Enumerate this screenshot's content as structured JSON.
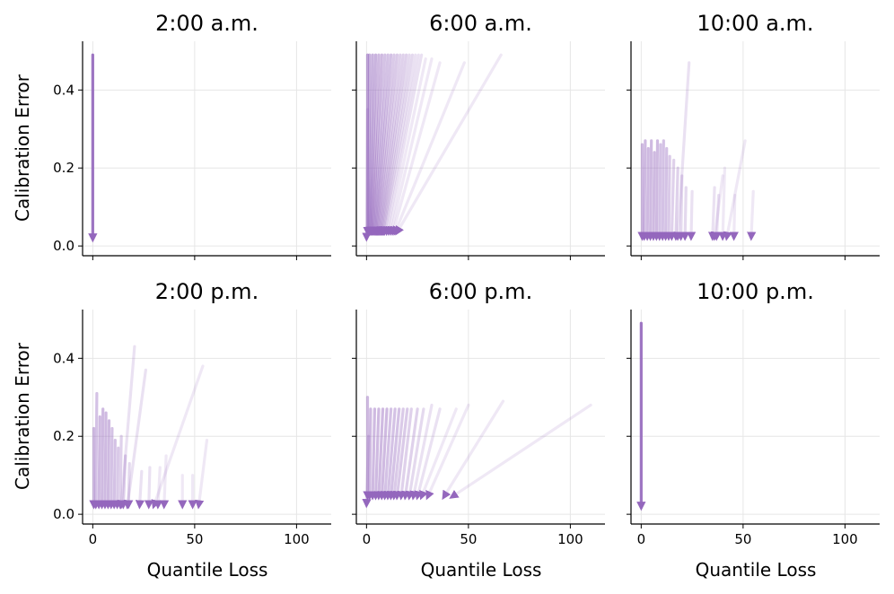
{
  "chart_data": {
    "type": "small-multiples-arrow-plot",
    "xlabel": "Quantile Loss",
    "ylabel": "Calibration Error",
    "xlim": [
      -5,
      117
    ],
    "ylim": [
      -0.025,
      0.525
    ],
    "xticks": [
      0,
      50,
      100
    ],
    "yticks": [
      0.0,
      0.2,
      0.4
    ],
    "ytick_labels": [
      "0.0",
      "0.2",
      "0.4"
    ],
    "xtick_labels": [
      "0",
      "50",
      "100"
    ],
    "color": "#9467bd",
    "panels": [
      {
        "title": "2:00 a.m.",
        "arrows": [
          {
            "x0": 0.0,
            "y0": 0.49,
            "x1": 0.0,
            "y1": 0.018,
            "alpha": 0.9
          }
        ]
      },
      {
        "title": "6:00 a.m.",
        "arrows": [
          {
            "x0": 0.5,
            "y0": 0.49,
            "x1": 0.5,
            "y1": 0.035,
            "alpha": 0.6
          },
          {
            "x0": 1.5,
            "y0": 0.49,
            "x1": 1.0,
            "y1": 0.035,
            "alpha": 0.5
          },
          {
            "x0": 3.0,
            "y0": 0.49,
            "x1": 1.5,
            "y1": 0.035,
            "alpha": 0.5
          },
          {
            "x0": 4.5,
            "y0": 0.49,
            "x1": 2.0,
            "y1": 0.035,
            "alpha": 0.5
          },
          {
            "x0": 6.0,
            "y0": 0.49,
            "x1": 2.5,
            "y1": 0.035,
            "alpha": 0.45
          },
          {
            "x0": 7.5,
            "y0": 0.49,
            "x1": 3.0,
            "y1": 0.035,
            "alpha": 0.45
          },
          {
            "x0": 9.0,
            "y0": 0.49,
            "x1": 3.5,
            "y1": 0.035,
            "alpha": 0.4
          },
          {
            "x0": 10.5,
            "y0": 0.49,
            "x1": 4.0,
            "y1": 0.035,
            "alpha": 0.4
          },
          {
            "x0": 12.0,
            "y0": 0.49,
            "x1": 4.5,
            "y1": 0.035,
            "alpha": 0.4
          },
          {
            "x0": 13.5,
            "y0": 0.49,
            "x1": 5.0,
            "y1": 0.035,
            "alpha": 0.35
          },
          {
            "x0": 15.0,
            "y0": 0.49,
            "x1": 5.5,
            "y1": 0.035,
            "alpha": 0.35
          },
          {
            "x0": 16.5,
            "y0": 0.49,
            "x1": 6.0,
            "y1": 0.035,
            "alpha": 0.3
          },
          {
            "x0": 18.0,
            "y0": 0.49,
            "x1": 6.5,
            "y1": 0.035,
            "alpha": 0.3
          },
          {
            "x0": 19.5,
            "y0": 0.49,
            "x1": 7.0,
            "y1": 0.035,
            "alpha": 0.3
          },
          {
            "x0": 21.0,
            "y0": 0.49,
            "x1": 7.5,
            "y1": 0.035,
            "alpha": 0.25
          },
          {
            "x0": 22.5,
            "y0": 0.49,
            "x1": 8.0,
            "y1": 0.035,
            "alpha": 0.25
          },
          {
            "x0": 24.0,
            "y0": 0.49,
            "x1": 8.5,
            "y1": 0.035,
            "alpha": 0.2
          },
          {
            "x0": 25.5,
            "y0": 0.49,
            "x1": 9.0,
            "y1": 0.035,
            "alpha": 0.2
          },
          {
            "x0": 27.0,
            "y0": 0.49,
            "x1": 10.0,
            "y1": 0.035,
            "alpha": 0.2
          },
          {
            "x0": 29.0,
            "y0": 0.48,
            "x1": 11.0,
            "y1": 0.035,
            "alpha": 0.15
          },
          {
            "x0": 32.0,
            "y0": 0.48,
            "x1": 12.0,
            "y1": 0.035,
            "alpha": 0.15
          },
          {
            "x0": 36.0,
            "y0": 0.47,
            "x1": 13.0,
            "y1": 0.035,
            "alpha": 0.15
          },
          {
            "x0": 48.0,
            "y0": 0.47,
            "x1": 14.0,
            "y1": 0.035,
            "alpha": 0.15
          },
          {
            "x0": 66.0,
            "y0": 0.49,
            "x1": 15.0,
            "y1": 0.035,
            "alpha": 0.15
          },
          {
            "x0": 0.5,
            "y0": 0.35,
            "x1": 0.0,
            "y1": 0.02,
            "alpha": 0.25
          }
        ]
      },
      {
        "title": "10:00 a.m.",
        "arrows": [
          {
            "x0": 0.5,
            "y0": 0.26,
            "x1": 0.5,
            "y1": 0.022,
            "alpha": 0.45
          },
          {
            "x0": 2.0,
            "y0": 0.27,
            "x1": 1.5,
            "y1": 0.022,
            "alpha": 0.45
          },
          {
            "x0": 3.5,
            "y0": 0.25,
            "x1": 3.0,
            "y1": 0.022,
            "alpha": 0.45
          },
          {
            "x0": 5.0,
            "y0": 0.27,
            "x1": 4.5,
            "y1": 0.022,
            "alpha": 0.45
          },
          {
            "x0": 6.5,
            "y0": 0.24,
            "x1": 6.0,
            "y1": 0.022,
            "alpha": 0.45
          },
          {
            "x0": 8.0,
            "y0": 0.27,
            "x1": 7.5,
            "y1": 0.022,
            "alpha": 0.45
          },
          {
            "x0": 9.5,
            "y0": 0.26,
            "x1": 9.0,
            "y1": 0.022,
            "alpha": 0.4
          },
          {
            "x0": 11.0,
            "y0": 0.27,
            "x1": 10.5,
            "y1": 0.022,
            "alpha": 0.4
          },
          {
            "x0": 12.5,
            "y0": 0.25,
            "x1": 12.0,
            "y1": 0.022,
            "alpha": 0.4
          },
          {
            "x0": 14.0,
            "y0": 0.23,
            "x1": 13.5,
            "y1": 0.022,
            "alpha": 0.35
          },
          {
            "x0": 16.0,
            "y0": 0.22,
            "x1": 15.0,
            "y1": 0.022,
            "alpha": 0.3
          },
          {
            "x0": 18.0,
            "y0": 0.2,
            "x1": 17.0,
            "y1": 0.022,
            "alpha": 0.3
          },
          {
            "x0": 20.0,
            "y0": 0.18,
            "x1": 19.5,
            "y1": 0.022,
            "alpha": 0.25
          },
          {
            "x0": 22.0,
            "y0": 0.15,
            "x1": 21.5,
            "y1": 0.022,
            "alpha": 0.25
          },
          {
            "x0": 23.5,
            "y0": 0.47,
            "x1": 18.0,
            "y1": 0.022,
            "alpha": 0.2
          },
          {
            "x0": 25.0,
            "y0": 0.14,
            "x1": 24.5,
            "y1": 0.022,
            "alpha": 0.2
          },
          {
            "x0": 36.0,
            "y0": 0.15,
            "x1": 35.0,
            "y1": 0.022,
            "alpha": 0.2
          },
          {
            "x0": 38.0,
            "y0": 0.13,
            "x1": 37.0,
            "y1": 0.022,
            "alpha": 0.2
          },
          {
            "x0": 40.0,
            "y0": 0.18,
            "x1": 36.0,
            "y1": 0.022,
            "alpha": 0.15
          },
          {
            "x0": 51.0,
            "y0": 0.27,
            "x1": 42.0,
            "y1": 0.022,
            "alpha": 0.15
          },
          {
            "x0": 55.0,
            "y0": 0.14,
            "x1": 54.0,
            "y1": 0.022,
            "alpha": 0.15
          },
          {
            "x0": 46.0,
            "y0": 0.13,
            "x1": 45.5,
            "y1": 0.022,
            "alpha": 0.15
          },
          {
            "x0": 41.0,
            "y0": 0.2,
            "x1": 40.0,
            "y1": 0.022,
            "alpha": 0.15
          }
        ]
      },
      {
        "title": "2:00 p.m.",
        "arrows": [
          {
            "x0": 0.5,
            "y0": 0.22,
            "x1": 0.5,
            "y1": 0.022,
            "alpha": 0.45
          },
          {
            "x0": 2.0,
            "y0": 0.31,
            "x1": 1.5,
            "y1": 0.022,
            "alpha": 0.4
          },
          {
            "x0": 3.5,
            "y0": 0.25,
            "x1": 3.0,
            "y1": 0.022,
            "alpha": 0.45
          },
          {
            "x0": 5.0,
            "y0": 0.27,
            "x1": 4.5,
            "y1": 0.022,
            "alpha": 0.45
          },
          {
            "x0": 6.5,
            "y0": 0.26,
            "x1": 6.0,
            "y1": 0.022,
            "alpha": 0.45
          },
          {
            "x0": 8.0,
            "y0": 0.24,
            "x1": 7.5,
            "y1": 0.022,
            "alpha": 0.45
          },
          {
            "x0": 9.5,
            "y0": 0.22,
            "x1": 9.0,
            "y1": 0.022,
            "alpha": 0.4
          },
          {
            "x0": 11.0,
            "y0": 0.19,
            "x1": 10.5,
            "y1": 0.022,
            "alpha": 0.4
          },
          {
            "x0": 12.5,
            "y0": 0.17,
            "x1": 12.0,
            "y1": 0.022,
            "alpha": 0.35
          },
          {
            "x0": 14.0,
            "y0": 0.2,
            "x1": 13.5,
            "y1": 0.022,
            "alpha": 0.3
          },
          {
            "x0": 16.0,
            "y0": 0.15,
            "x1": 15.0,
            "y1": 0.022,
            "alpha": 0.3
          },
          {
            "x0": 18.0,
            "y0": 0.13,
            "x1": 17.5,
            "y1": 0.022,
            "alpha": 0.25
          },
          {
            "x0": 20.5,
            "y0": 0.43,
            "x1": 14.0,
            "y1": 0.022,
            "alpha": 0.2
          },
          {
            "x0": 26.0,
            "y0": 0.37,
            "x1": 17.0,
            "y1": 0.022,
            "alpha": 0.2
          },
          {
            "x0": 24.0,
            "y0": 0.11,
            "x1": 23.0,
            "y1": 0.022,
            "alpha": 0.2
          },
          {
            "x0": 28.0,
            "y0": 0.12,
            "x1": 27.5,
            "y1": 0.022,
            "alpha": 0.2
          },
          {
            "x0": 33.0,
            "y0": 0.12,
            "x1": 32.0,
            "y1": 0.022,
            "alpha": 0.15
          },
          {
            "x0": 44.0,
            "y0": 0.1,
            "x1": 44.0,
            "y1": 0.022,
            "alpha": 0.15
          },
          {
            "x0": 49.0,
            "y0": 0.1,
            "x1": 49.0,
            "y1": 0.022,
            "alpha": 0.15
          },
          {
            "x0": 54.0,
            "y0": 0.38,
            "x1": 30.0,
            "y1": 0.022,
            "alpha": 0.15
          },
          {
            "x0": 56.0,
            "y0": 0.19,
            "x1": 52.0,
            "y1": 0.022,
            "alpha": 0.15
          },
          {
            "x0": 36.0,
            "y0": 0.15,
            "x1": 35.0,
            "y1": 0.022,
            "alpha": 0.15
          }
        ]
      },
      {
        "title": "6:00 p.m.",
        "arrows": [
          {
            "x0": 0.5,
            "y0": 0.3,
            "x1": 0.5,
            "y1": 0.045,
            "alpha": 0.45
          },
          {
            "x0": 2.0,
            "y0": 0.27,
            "x1": 1.5,
            "y1": 0.045,
            "alpha": 0.45
          },
          {
            "x0": 4.0,
            "y0": 0.27,
            "x1": 3.0,
            "y1": 0.045,
            "alpha": 0.45
          },
          {
            "x0": 6.0,
            "y0": 0.27,
            "x1": 4.5,
            "y1": 0.045,
            "alpha": 0.45
          },
          {
            "x0": 8.0,
            "y0": 0.27,
            "x1": 6.0,
            "y1": 0.045,
            "alpha": 0.45
          },
          {
            "x0": 10.0,
            "y0": 0.27,
            "x1": 7.5,
            "y1": 0.045,
            "alpha": 0.45
          },
          {
            "x0": 12.0,
            "y0": 0.27,
            "x1": 9.0,
            "y1": 0.045,
            "alpha": 0.4
          },
          {
            "x0": 14.0,
            "y0": 0.27,
            "x1": 10.5,
            "y1": 0.045,
            "alpha": 0.4
          },
          {
            "x0": 16.0,
            "y0": 0.27,
            "x1": 12.0,
            "y1": 0.045,
            "alpha": 0.4
          },
          {
            "x0": 18.0,
            "y0": 0.27,
            "x1": 13.5,
            "y1": 0.045,
            "alpha": 0.35
          },
          {
            "x0": 20.0,
            "y0": 0.27,
            "x1": 15.0,
            "y1": 0.045,
            "alpha": 0.35
          },
          {
            "x0": 22.0,
            "y0": 0.27,
            "x1": 17.0,
            "y1": 0.045,
            "alpha": 0.3
          },
          {
            "x0": 25.0,
            "y0": 0.27,
            "x1": 19.0,
            "y1": 0.045,
            "alpha": 0.3
          },
          {
            "x0": 28.0,
            "y0": 0.27,
            "x1": 21.0,
            "y1": 0.045,
            "alpha": 0.25
          },
          {
            "x0": 32.0,
            "y0": 0.28,
            "x1": 23.0,
            "y1": 0.045,
            "alpha": 0.2
          },
          {
            "x0": 36.0,
            "y0": 0.27,
            "x1": 25.0,
            "y1": 0.045,
            "alpha": 0.2
          },
          {
            "x0": 44.0,
            "y0": 0.27,
            "x1": 27.0,
            "y1": 0.045,
            "alpha": 0.15
          },
          {
            "x0": 50.0,
            "y0": 0.28,
            "x1": 30.0,
            "y1": 0.045,
            "alpha": 0.15
          },
          {
            "x0": 67.0,
            "y0": 0.29,
            "x1": 38.0,
            "y1": 0.045,
            "alpha": 0.15
          },
          {
            "x0": 110.0,
            "y0": 0.28,
            "x1": 42.0,
            "y1": 0.045,
            "alpha": 0.15
          },
          {
            "x0": 1.0,
            "y0": 0.2,
            "x1": 0.0,
            "y1": 0.025,
            "alpha": 0.25
          }
        ]
      },
      {
        "title": "10:00 p.m.",
        "arrows": [
          {
            "x0": 0.0,
            "y0": 0.49,
            "x1": 0.0,
            "y1": 0.018,
            "alpha": 0.9
          }
        ]
      }
    ]
  }
}
